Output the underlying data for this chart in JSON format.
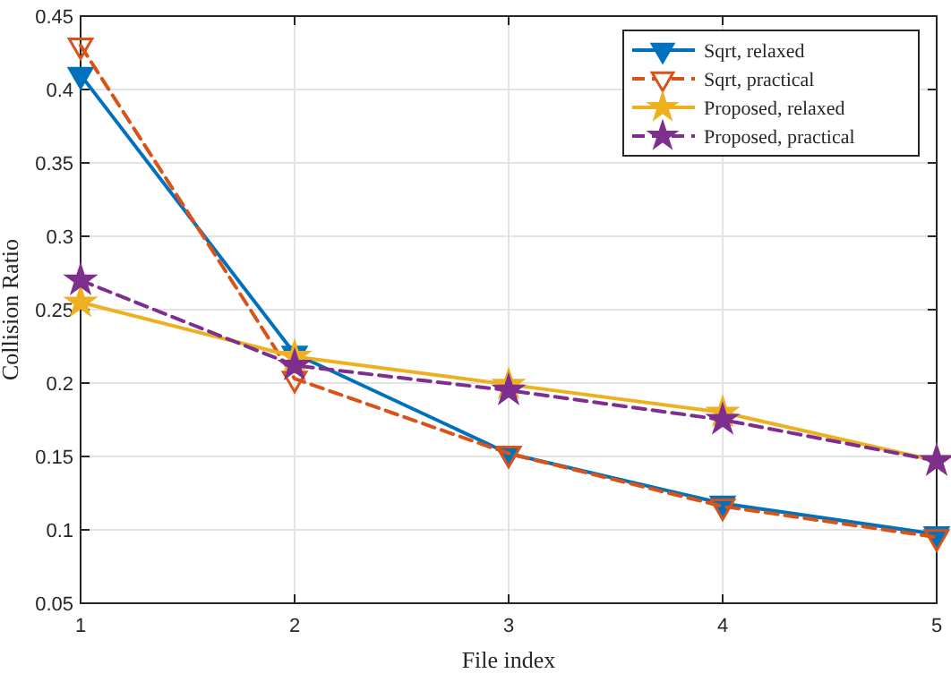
{
  "chart_data": {
    "type": "line",
    "xlabel": "File index",
    "ylabel": "Collision Ratio",
    "x": [
      1,
      2,
      3,
      4,
      5
    ],
    "xlim": [
      1,
      5
    ],
    "xticks": [
      1,
      2,
      3,
      4,
      5
    ],
    "ylim": [
      0.05,
      0.45
    ],
    "yticks": [
      0.05,
      0.1,
      0.15,
      0.2,
      0.25,
      0.3,
      0.35,
      0.4,
      0.45
    ],
    "grid": true,
    "legend": "top right",
    "series": [
      {
        "name": "Sqrt, relaxed",
        "color": "#0072bd",
        "marker": "triangle",
        "line_style": "solid",
        "values": [
          0.41,
          0.22,
          0.152,
          0.118,
          0.097
        ]
      },
      {
        "name": "Sqrt, practical",
        "color": "#d95319",
        "marker": "triangle",
        "line_style": "dashed",
        "values": [
          0.43,
          0.203,
          0.152,
          0.116,
          0.095
        ]
      },
      {
        "name": "Proposed, relaxed",
        "color": "#edb120",
        "marker": "star",
        "line_style": "solid",
        "values": [
          0.255,
          0.218,
          0.199,
          0.18,
          0.147
        ]
      },
      {
        "name": "Proposed, practical",
        "color": "#7e2f8e",
        "marker": "star",
        "line_style": "dashed",
        "values": [
          0.27,
          0.212,
          0.195,
          0.175,
          0.147
        ]
      }
    ]
  }
}
